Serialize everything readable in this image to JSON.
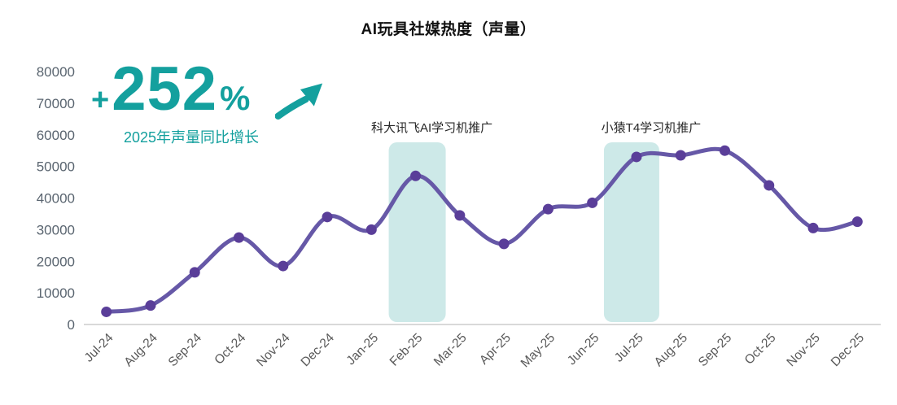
{
  "title": "AI玩具社媒热度（声量）",
  "stat": {
    "prefix": "+",
    "value": "252",
    "unit": "%",
    "caption": "2025年声量同比增长",
    "accent_color": "#14a09e"
  },
  "chart_data": {
    "type": "line",
    "title": "AI玩具社媒热度（声量）",
    "x": [
      "Jul-24",
      "Aug-24",
      "Sep-24",
      "Oct-24",
      "Nov-24",
      "Dec-24",
      "Jan-25",
      "Feb-25",
      "Mar-25",
      "Apr-25",
      "May-25",
      "Jun-25",
      "Jul-25",
      "Aug-25",
      "Sep-25",
      "Oct-25",
      "Nov-25",
      "Dec-25"
    ],
    "series": [
      {
        "name": "声量",
        "values": [
          4000,
          6000,
          16500,
          27500,
          18500,
          34000,
          30000,
          47000,
          34500,
          25500,
          36500,
          38500,
          53000,
          53500,
          55000,
          44000,
          30500,
          32500
        ]
      }
    ],
    "ylim": [
      0,
      80000
    ],
    "yticks": [
      0,
      10000,
      20000,
      30000,
      40000,
      50000,
      60000,
      70000,
      80000
    ],
    "grid": false,
    "legend": "none",
    "line_color": "#6658a7",
    "marker_color": "#5a3e99",
    "band_color": "#cde9e8",
    "axis_line_color": "#d9d9d9",
    "annotations": [
      {
        "label": "科大讯飞AI学习机推广",
        "month": "Feb-25",
        "month_index": 7,
        "band_width": 70,
        "band_dx": 2,
        "label_dx": 18
      },
      {
        "label": "小猿T4学习机推广",
        "month": "Jul-25",
        "month_index": 12,
        "band_width": 68,
        "band_dx": -6,
        "label_dx": 24
      }
    ]
  }
}
